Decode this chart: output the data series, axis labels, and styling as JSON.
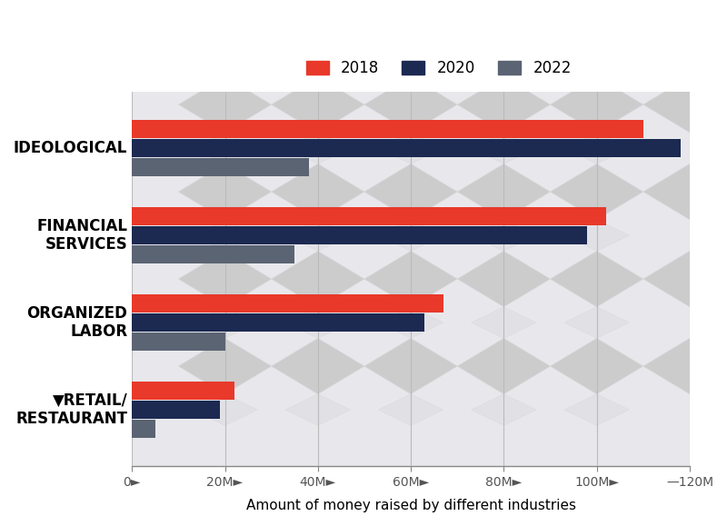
{
  "categories": [
    "IDEOLOGICAL",
    "FINANCIAL\nSERVICES",
    "ORGANIZED\nLABOR",
    "▼RETAIL/\nRESTAURANT"
  ],
  "years": [
    "2018",
    "2020",
    "2022"
  ],
  "values": [
    [
      110000000,
      118000000,
      38000000
    ],
    [
      102000000,
      98000000,
      35000000
    ],
    [
      67000000,
      63000000,
      20000000
    ],
    [
      22000000,
      19000000,
      5000000
    ]
  ],
  "colors": {
    "2018": "#E8392A",
    "2020": "#1C2951",
    "2022": "#5B6473"
  },
  "bar_height": 0.22,
  "xlim": [
    0,
    120000000
  ],
  "xlabel": "Amount of money raised by different industries",
  "background_color": "#FFFFFF",
  "plot_bg_color": "#E8E8EC",
  "grid_color": "#BBBBBB",
  "label_fontsize": 12,
  "tick_fontsize": 10,
  "diamond_color": "#CCCCCC",
  "diamond_color2": "#D8D8DC"
}
